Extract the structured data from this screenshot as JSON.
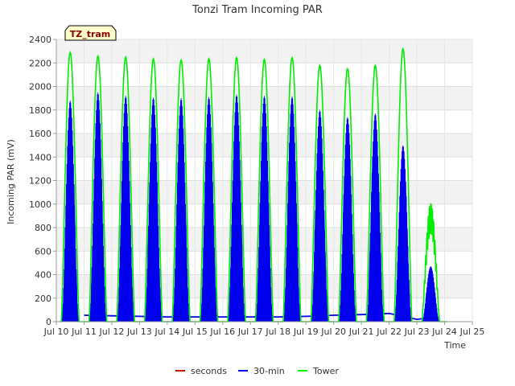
{
  "chart_data": {
    "type": "line",
    "title": "Tonzi Tram Incoming PAR",
    "xlabel": "Time",
    "ylabel": "Incoming PAR (mV)",
    "tag_label": "TZ_tram",
    "xlim": [
      10,
      25
    ],
    "ylim": [
      0,
      2400
    ],
    "x_ticks": [
      {
        "value": 10,
        "label": "Jul 10"
      },
      {
        "value": 11,
        "label": "Jul 11"
      },
      {
        "value": 12,
        "label": "Jul 12"
      },
      {
        "value": 13,
        "label": "Jul 13"
      },
      {
        "value": 14,
        "label": "Jul 14"
      },
      {
        "value": 15,
        "label": "Jul 15"
      },
      {
        "value": 16,
        "label": "Jul 16"
      },
      {
        "value": 17,
        "label": "Jul 17"
      },
      {
        "value": 18,
        "label": "Jul 18"
      },
      {
        "value": 19,
        "label": "Jul 19"
      },
      {
        "value": 20,
        "label": "Jul 20"
      },
      {
        "value": 21,
        "label": "Jul 21"
      },
      {
        "value": 22,
        "label": "Jul 22"
      },
      {
        "value": 23,
        "label": "Jul 23"
      },
      {
        "value": 24,
        "label": "Jul 24"
      },
      {
        "value": 25,
        "label": "Jul 25"
      }
    ],
    "y_ticks": [
      0,
      200,
      400,
      600,
      800,
      1000,
      1200,
      1400,
      1600,
      1800,
      2000,
      2200,
      2400
    ],
    "legend_position": "bottom-center",
    "series": [
      {
        "name": "seconds",
        "color": "#cc0000",
        "points": []
      },
      {
        "name": "30-min",
        "color": "#0000ee",
        "daily_peaks": [
          {
            "day": 10.5,
            "peak": 1880
          },
          {
            "day": 11.5,
            "peak": 1950
          },
          {
            "day": 12.5,
            "peak": 1920
          },
          {
            "day": 13.5,
            "peak": 1905
          },
          {
            "day": 14.5,
            "peak": 1900
          },
          {
            "day": 15.5,
            "peak": 1910
          },
          {
            "day": 16.5,
            "peak": 1930
          },
          {
            "day": 17.5,
            "peak": 1920
          },
          {
            "day": 18.5,
            "peak": 1915
          },
          {
            "day": 19.5,
            "peak": 1800
          },
          {
            "day": 20.5,
            "peak": 1740
          },
          {
            "day": 21.5,
            "peak": 1770
          },
          {
            "day": 22.5,
            "peak": 1500
          },
          {
            "day": 23.5,
            "peak": 470
          }
        ],
        "night_baseline": [
          {
            "x": 11.0,
            "y": 55
          },
          {
            "x": 12.0,
            "y": 50
          },
          {
            "x": 13.0,
            "y": 45
          },
          {
            "x": 14.0,
            "y": 40
          },
          {
            "x": 15.0,
            "y": 40
          },
          {
            "x": 16.0,
            "y": 40
          },
          {
            "x": 17.0,
            "y": 40
          },
          {
            "x": 18.0,
            "y": 40
          },
          {
            "x": 19.0,
            "y": 45
          },
          {
            "x": 20.0,
            "y": 55
          },
          {
            "x": 21.0,
            "y": 60
          },
          {
            "x": 22.0,
            "y": 70
          },
          {
            "x": 23.0,
            "y": 20
          },
          {
            "x": 23.7,
            "y": 40
          }
        ]
      },
      {
        "name": "Tower",
        "color": "#00ee00",
        "daily_peaks": [
          {
            "day": 10.5,
            "peak": 2290
          },
          {
            "day": 11.5,
            "peak": 2260
          },
          {
            "day": 12.5,
            "peak": 2250
          },
          {
            "day": 13.5,
            "peak": 2235
          },
          {
            "day": 14.5,
            "peak": 2225
          },
          {
            "day": 15.5,
            "peak": 2235
          },
          {
            "day": 16.5,
            "peak": 2245
          },
          {
            "day": 17.5,
            "peak": 2230
          },
          {
            "day": 18.5,
            "peak": 2245
          },
          {
            "day": 19.5,
            "peak": 2180
          },
          {
            "day": 20.5,
            "peak": 2150
          },
          {
            "day": 21.5,
            "peak": 2180
          },
          {
            "day": 22.5,
            "peak": 2320
          },
          {
            "day": 23.5,
            "peak": 1000
          }
        ]
      }
    ]
  }
}
